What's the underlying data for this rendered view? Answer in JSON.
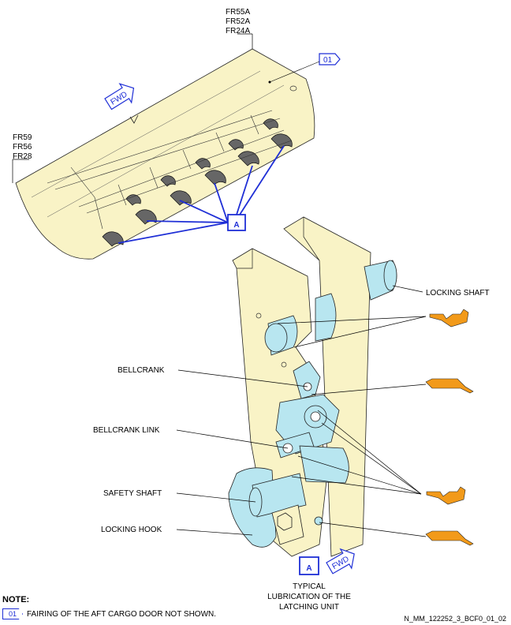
{
  "frame_labels_top": [
    "FR55A",
    "FR52A",
    "FR24A"
  ],
  "frame_labels_left": [
    "FR59",
    "FR56",
    "FR28"
  ],
  "callout_01": "01",
  "fwd_label": "FWD",
  "detail_ref": "A",
  "part_labels": {
    "locking_shaft": "LOCKING SHAFT",
    "bellcrank": "BELLCRANK",
    "bellcrank_link": "BELLCRANK LINK",
    "safety_shaft": "SAFETY SHAFT",
    "locking_hook": "LOCKING HOOK"
  },
  "detail_caption": [
    "TYPICAL",
    "LUBRICATION OF THE",
    "LATCHING UNIT"
  ],
  "note": {
    "heading": "NOTE:",
    "tag": "01",
    "text": "FAIRING OF THE AFT CARGO DOOR NOT SHOWN."
  },
  "figure_id": "N_MM_122252_3_BCF0_01_02",
  "colors": {
    "fairing": "#f9f3c6",
    "part": "#b8e6f0",
    "lubricant_tool": "#f29a1a",
    "callout_blue": "#1f2fd6"
  }
}
